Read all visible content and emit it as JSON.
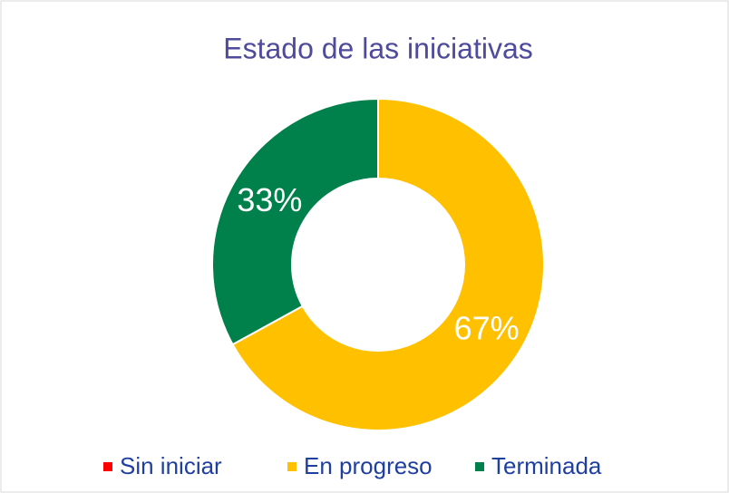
{
  "chart_data": {
    "type": "donut",
    "title": "Estado de las iniciativas",
    "categories": [
      "Sin iniciar",
      "En progreso",
      "Terminada"
    ],
    "values": [
      0,
      67,
      33
    ],
    "value_labels": [
      null,
      "67%",
      "33%"
    ],
    "colors": [
      "#ff0000",
      "#ffc000",
      "#00804a"
    ],
    "legend": "bottom"
  }
}
